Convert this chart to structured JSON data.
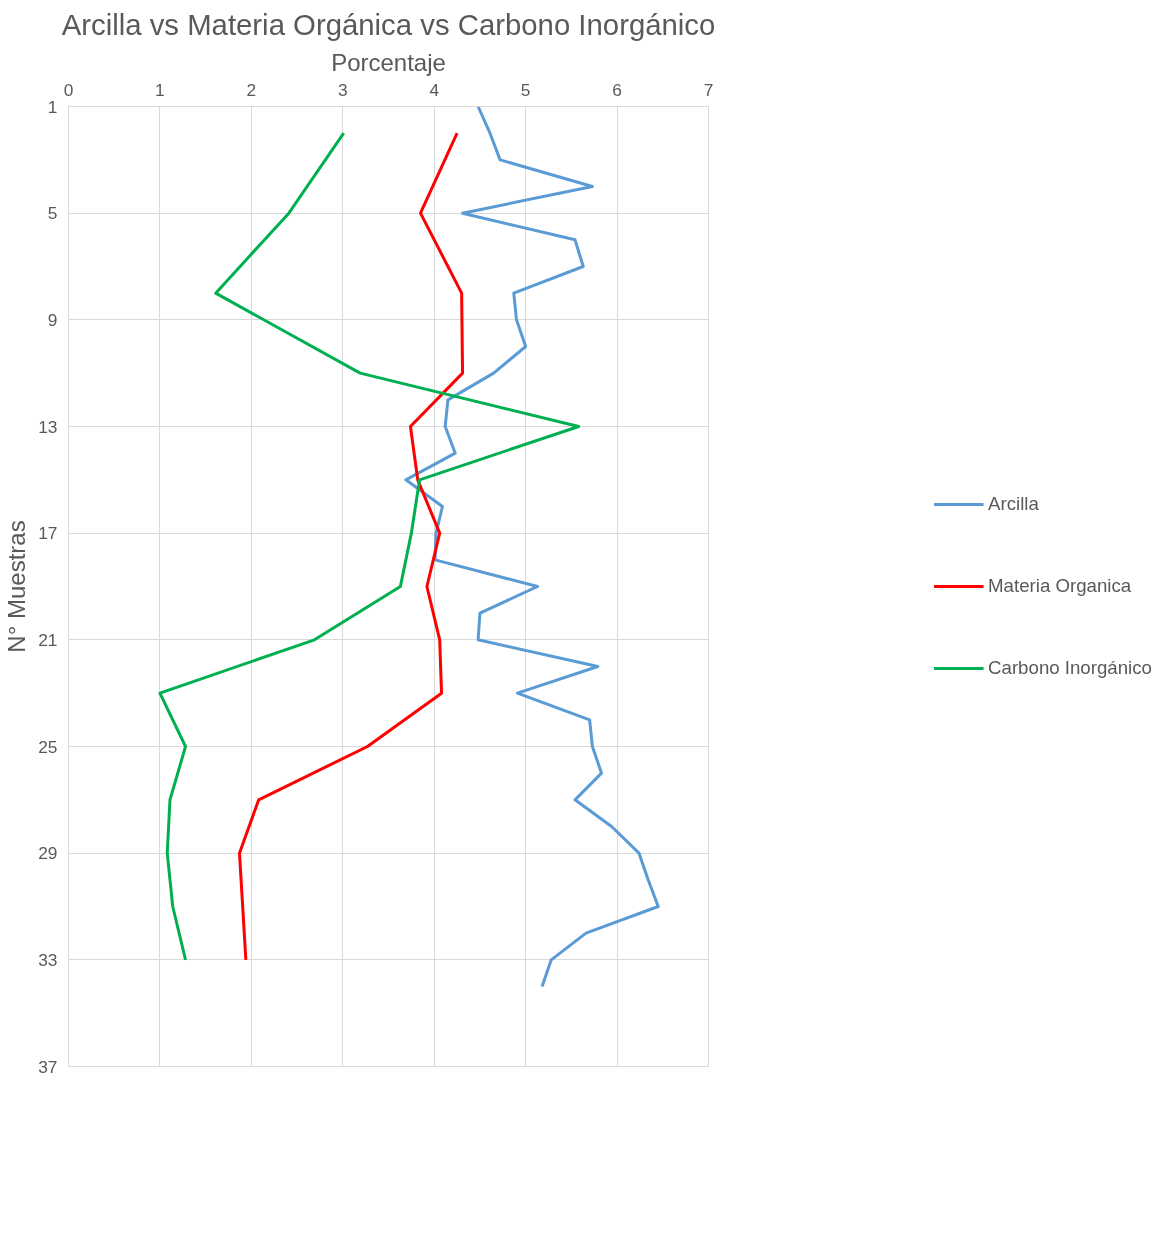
{
  "chart_data": {
    "type": "line",
    "title": "Arcilla vs Materia Orgánica vs Carbono Inorgánico",
    "xlabel": "Porcentaje",
    "ylabel": "N° Muestras",
    "xlim": [
      0,
      7
    ],
    "xticks": [
      0,
      1,
      2,
      3,
      4,
      5,
      6,
      7
    ],
    "ylim": [
      37,
      1
    ],
    "yticks": [
      1,
      5,
      9,
      13,
      17,
      21,
      25,
      29,
      33,
      37
    ],
    "grid": true,
    "legend": "right",
    "marker": "none",
    "line_style": "solid",
    "series": [
      {
        "name": "Arcilla",
        "color": "#5b9bd5",
        "values": [
          1,
          2,
          3,
          4,
          5,
          6,
          7,
          8,
          9,
          10,
          11,
          12,
          13,
          14,
          15,
          16,
          17,
          18,
          19,
          20,
          21,
          22,
          23,
          24,
          25,
          26,
          27,
          28,
          29,
          30,
          31,
          32,
          33,
          34
        ],
        "x": [
          4.48,
          4.61,
          4.72,
          5.73,
          4.31,
          5.54,
          5.63,
          4.87,
          4.9,
          5.0,
          4.65,
          4.15,
          4.12,
          4.23,
          3.69,
          4.09,
          4.02,
          4.01,
          5.13,
          4.5,
          4.48,
          5.79,
          4.91,
          5.7,
          5.73,
          5.83,
          5.54,
          5.94,
          6.24,
          6.34,
          6.45,
          5.66,
          5.28,
          5.18
        ]
      },
      {
        "name": "Materia Organica",
        "color": "#ff0000",
        "values": [
          2,
          5,
          8,
          11,
          13,
          15,
          17,
          19,
          21,
          23,
          25,
          27,
          29,
          33
        ],
        "x": [
          4.25,
          3.85,
          4.3,
          4.31,
          3.74,
          3.82,
          4.06,
          3.92,
          4.06,
          4.08,
          3.27,
          2.08,
          1.87,
          1.94
        ]
      },
      {
        "name": "Carbono Inorgánico",
        "color": "#00b050",
        "values": [
          2,
          5,
          8,
          11,
          13,
          15,
          17,
          19,
          21,
          23,
          25,
          27,
          29,
          31,
          33
        ],
        "x": [
          3.01,
          2.41,
          1.61,
          3.19,
          5.58,
          3.84,
          3.75,
          3.63,
          2.69,
          1.0,
          1.28,
          1.11,
          1.08,
          1.14,
          1.28
        ]
      }
    ]
  }
}
